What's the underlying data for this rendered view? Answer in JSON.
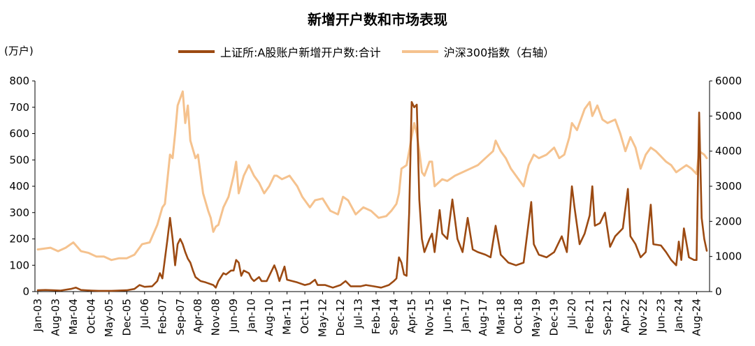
{
  "title": "新增开户数和市场表现",
  "left_unit": "(万户)",
  "colors": {
    "accounts": "#9c4a12",
    "index": "#f5c28e"
  },
  "chart_data": {
    "type": "line",
    "title": "新增开户数和市场表现",
    "ylabel_left": "(万户)",
    "ylim_left": [
      0,
      800
    ],
    "ylim_right": [
      0,
      6000
    ],
    "y_ticks_left": [
      "0",
      "100",
      "200",
      "300",
      "400",
      "500",
      "600",
      "700",
      "800"
    ],
    "y_ticks_right": [
      "0",
      "1000",
      "2000",
      "3000",
      "4000",
      "5000",
      "6000"
    ],
    "x_ticks": [
      "Jan-03",
      "Aug-03",
      "Mar-04",
      "Oct-04",
      "May-05",
      "Dec-05",
      "Jul-06",
      "Feb-07",
      "Sep-07",
      "Apr-08",
      "Nov-08",
      "Jun-09",
      "Jan-10",
      "Aug-10",
      "Mar-11",
      "Oct-11",
      "May-12",
      "Dec-12",
      "Jul-13",
      "Feb-14",
      "Sep-14",
      "Apr-15",
      "Nov-15",
      "Jun-16",
      "Jan-17",
      "Aug-17",
      "Mar-18",
      "Oct-18",
      "May-19",
      "Dec-19",
      "Jul-20",
      "Feb-21",
      "Sep-21",
      "Apr-22",
      "Nov-22",
      "Jun-23",
      "Jan-24",
      "Aug-24"
    ],
    "legend_position": "top",
    "grid": false,
    "series": [
      {
        "name": "上证所:A股账户新增开户数:合计",
        "axis": "left",
        "points": [
          [
            "2003-01",
            5
          ],
          [
            "2003-04",
            6
          ],
          [
            "2003-07",
            5
          ],
          [
            "2003-10",
            4
          ],
          [
            "2004-02",
            10
          ],
          [
            "2004-04",
            15
          ],
          [
            "2004-06",
            6
          ],
          [
            "2004-10",
            4
          ],
          [
            "2005-01",
            3
          ],
          [
            "2005-06",
            3
          ],
          [
            "2005-12",
            5
          ],
          [
            "2006-03",
            10
          ],
          [
            "2006-05",
            25
          ],
          [
            "2006-07",
            18
          ],
          [
            "2006-10",
            20
          ],
          [
            "2006-12",
            40
          ],
          [
            "2007-01",
            70
          ],
          [
            "2007-02",
            50
          ],
          [
            "2007-04",
            200
          ],
          [
            "2007-05",
            280
          ],
          [
            "2007-06",
            200
          ],
          [
            "2007-07",
            100
          ],
          [
            "2007-08",
            180
          ],
          [
            "2007-09",
            200
          ],
          [
            "2007-10",
            180
          ],
          [
            "2007-11",
            150
          ],
          [
            "2007-12",
            125
          ],
          [
            "2008-01",
            110
          ],
          [
            "2008-02",
            80
          ],
          [
            "2008-03",
            55
          ],
          [
            "2008-05",
            40
          ],
          [
            "2008-07",
            35
          ],
          [
            "2008-10",
            25
          ],
          [
            "2008-11",
            15
          ],
          [
            "2008-12",
            40
          ],
          [
            "2009-02",
            70
          ],
          [
            "2009-03",
            65
          ],
          [
            "2009-05",
            80
          ],
          [
            "2009-06",
            80
          ],
          [
            "2009-07",
            120
          ],
          [
            "2009-08",
            110
          ],
          [
            "2009-09",
            60
          ],
          [
            "2009-10",
            80
          ],
          [
            "2009-12",
            70
          ],
          [
            "2010-01",
            50
          ],
          [
            "2010-02",
            40
          ],
          [
            "2010-04",
            55
          ],
          [
            "2010-05",
            40
          ],
          [
            "2010-07",
            40
          ],
          [
            "2010-10",
            100
          ],
          [
            "2010-11",
            75
          ],
          [
            "2010-12",
            40
          ],
          [
            "2011-02",
            95
          ],
          [
            "2011-03",
            45
          ],
          [
            "2011-05",
            40
          ],
          [
            "2011-07",
            35
          ],
          [
            "2011-10",
            25
          ],
          [
            "2011-12",
            30
          ],
          [
            "2012-02",
            45
          ],
          [
            "2012-03",
            25
          ],
          [
            "2012-06",
            25
          ],
          [
            "2012-09",
            15
          ],
          [
            "2012-12",
            25
          ],
          [
            "2013-02",
            40
          ],
          [
            "2013-04",
            20
          ],
          [
            "2013-08",
            20
          ],
          [
            "2013-10",
            25
          ],
          [
            "2014-01",
            20
          ],
          [
            "2014-04",
            15
          ],
          [
            "2014-07",
            25
          ],
          [
            "2014-09",
            40
          ],
          [
            "2014-10",
            50
          ],
          [
            "2014-11",
            130
          ],
          [
            "2014-12",
            110
          ],
          [
            "2015-01",
            65
          ],
          [
            "2015-02",
            60
          ],
          [
            "2015-03",
            300
          ],
          [
            "2015-04",
            720
          ],
          [
            "2015-05",
            700
          ],
          [
            "2015-06",
            710
          ],
          [
            "2015-07",
            350
          ],
          [
            "2015-08",
            200
          ],
          [
            "2015-09",
            150
          ],
          [
            "2015-11",
            200
          ],
          [
            "2015-12",
            220
          ],
          [
            "2016-01",
            150
          ],
          [
            "2016-03",
            310
          ],
          [
            "2016-04",
            220
          ],
          [
            "2016-06",
            200
          ],
          [
            "2016-08",
            350
          ],
          [
            "2016-10",
            200
          ],
          [
            "2016-12",
            150
          ],
          [
            "2017-02",
            280
          ],
          [
            "2017-04",
            160
          ],
          [
            "2017-06",
            150
          ],
          [
            "2017-09",
            140
          ],
          [
            "2017-11",
            130
          ],
          [
            "2018-01",
            250
          ],
          [
            "2018-03",
            140
          ],
          [
            "2018-06",
            110
          ],
          [
            "2018-09",
            100
          ],
          [
            "2018-12",
            110
          ],
          [
            "2019-03",
            340
          ],
          [
            "2019-04",
            180
          ],
          [
            "2019-06",
            140
          ],
          [
            "2019-09",
            130
          ],
          [
            "2019-12",
            150
          ],
          [
            "2020-03",
            210
          ],
          [
            "2020-05",
            150
          ],
          [
            "2020-07",
            400
          ],
          [
            "2020-08",
            320
          ],
          [
            "2020-10",
            180
          ],
          [
            "2020-12",
            220
          ],
          [
            "2021-02",
            290
          ],
          [
            "2021-03",
            400
          ],
          [
            "2021-04",
            250
          ],
          [
            "2021-06",
            260
          ],
          [
            "2021-08",
            300
          ],
          [
            "2021-10",
            170
          ],
          [
            "2021-12",
            210
          ],
          [
            "2022-03",
            240
          ],
          [
            "2022-05",
            390
          ],
          [
            "2022-06",
            210
          ],
          [
            "2022-08",
            180
          ],
          [
            "2022-10",
            130
          ],
          [
            "2022-12",
            150
          ],
          [
            "2023-02",
            330
          ],
          [
            "2023-03",
            180
          ],
          [
            "2023-06",
            175
          ],
          [
            "2023-08",
            150
          ],
          [
            "2023-10",
            120
          ],
          [
            "2023-12",
            100
          ],
          [
            "2024-01",
            190
          ],
          [
            "2024-02",
            120
          ],
          [
            "2024-03",
            240
          ],
          [
            "2024-05",
            130
          ],
          [
            "2024-07",
            120
          ],
          [
            "2024-08",
            120
          ],
          [
            "2024-09",
            680
          ],
          [
            "2024-10",
            280
          ],
          [
            "2024-11",
            200
          ],
          [
            "2024-12",
            155
          ]
        ]
      },
      {
        "name": "沪深300指数（右轴）",
        "axis": "right",
        "points": [
          [
            "2003-01",
            1200
          ],
          [
            "2003-06",
            1250
          ],
          [
            "2003-09",
            1150
          ],
          [
            "2003-12",
            1250
          ],
          [
            "2004-03",
            1400
          ],
          [
            "2004-06",
            1150
          ],
          [
            "2004-09",
            1100
          ],
          [
            "2004-12",
            1000
          ],
          [
            "2005-03",
            1000
          ],
          [
            "2005-06",
            900
          ],
          [
            "2005-09",
            950
          ],
          [
            "2005-12",
            950
          ],
          [
            "2006-03",
            1050
          ],
          [
            "2006-06",
            1350
          ],
          [
            "2006-09",
            1400
          ],
          [
            "2006-12",
            1900
          ],
          [
            "2007-02",
            2400
          ],
          [
            "2007-03",
            2500
          ],
          [
            "2007-05",
            3900
          ],
          [
            "2007-06",
            3800
          ],
          [
            "2007-07",
            4500
          ],
          [
            "2007-08",
            5300
          ],
          [
            "2007-10",
            5700
          ],
          [
            "2007-11",
            4800
          ],
          [
            "2007-12",
            5300
          ],
          [
            "2008-01",
            4300
          ],
          [
            "2008-03",
            3800
          ],
          [
            "2008-04",
            3900
          ],
          [
            "2008-06",
            2800
          ],
          [
            "2008-08",
            2300
          ],
          [
            "2008-09",
            2100
          ],
          [
            "2008-10",
            1700
          ],
          [
            "2008-11",
            1850
          ],
          [
            "2008-12",
            1900
          ],
          [
            "2009-02",
            2400
          ],
          [
            "2009-04",
            2700
          ],
          [
            "2009-06",
            3300
          ],
          [
            "2009-07",
            3700
          ],
          [
            "2009-08",
            2800
          ],
          [
            "2009-10",
            3300
          ],
          [
            "2009-12",
            3600
          ],
          [
            "2010-02",
            3300
          ],
          [
            "2010-04",
            3100
          ],
          [
            "2010-06",
            2800
          ],
          [
            "2010-08",
            3000
          ],
          [
            "2010-10",
            3300
          ],
          [
            "2010-11",
            3300
          ],
          [
            "2011-01",
            3200
          ],
          [
            "2011-04",
            3300
          ],
          [
            "2011-07",
            3000
          ],
          [
            "2011-09",
            2700
          ],
          [
            "2011-12",
            2400
          ],
          [
            "2012-02",
            2600
          ],
          [
            "2012-05",
            2650
          ],
          [
            "2012-08",
            2300
          ],
          [
            "2012-11",
            2200
          ],
          [
            "2013-01",
            2700
          ],
          [
            "2013-03",
            2600
          ],
          [
            "2013-06",
            2200
          ],
          [
            "2013-09",
            2400
          ],
          [
            "2013-12",
            2300
          ],
          [
            "2014-03",
            2100
          ],
          [
            "2014-06",
            2150
          ],
          [
            "2014-08",
            2300
          ],
          [
            "2014-10",
            2500
          ],
          [
            "2014-11",
            2800
          ],
          [
            "2014-12",
            3500
          ],
          [
            "2015-02",
            3600
          ],
          [
            "2015-03",
            4000
          ],
          [
            "2015-05",
            4800
          ],
          [
            "2015-06",
            4500
          ],
          [
            "2015-07",
            4000
          ],
          [
            "2015-08",
            3400
          ],
          [
            "2015-09",
            3300
          ],
          [
            "2015-11",
            3700
          ],
          [
            "2015-12",
            3700
          ],
          [
            "2016-01",
            3000
          ],
          [
            "2016-04",
            3200
          ],
          [
            "2016-06",
            3150
          ],
          [
            "2016-09",
            3300
          ],
          [
            "2016-12",
            3400
          ],
          [
            "2017-03",
            3500
          ],
          [
            "2017-06",
            3600
          ],
          [
            "2017-09",
            3800
          ],
          [
            "2017-12",
            4000
          ],
          [
            "2018-01",
            4300
          ],
          [
            "2018-03",
            4000
          ],
          [
            "2018-05",
            3800
          ],
          [
            "2018-07",
            3500
          ],
          [
            "2018-10",
            3200
          ],
          [
            "2018-12",
            3000
          ],
          [
            "2019-02",
            3600
          ],
          [
            "2019-04",
            3900
          ],
          [
            "2019-06",
            3800
          ],
          [
            "2019-09",
            3900
          ],
          [
            "2019-12",
            4100
          ],
          [
            "2020-02",
            3800
          ],
          [
            "2020-04",
            3900
          ],
          [
            "2020-06",
            4400
          ],
          [
            "2020-07",
            4800
          ],
          [
            "2020-09",
            4600
          ],
          [
            "2020-12",
            5200
          ],
          [
            "2021-02",
            5400
          ],
          [
            "2021-03",
            5000
          ],
          [
            "2021-05",
            5300
          ],
          [
            "2021-07",
            4900
          ],
          [
            "2021-09",
            4800
          ],
          [
            "2021-12",
            4900
          ],
          [
            "2022-02",
            4500
          ],
          [
            "2022-04",
            4000
          ],
          [
            "2022-06",
            4400
          ],
          [
            "2022-08",
            4100
          ],
          [
            "2022-10",
            3500
          ],
          [
            "2022-12",
            3900
          ],
          [
            "2023-02",
            4100
          ],
          [
            "2023-04",
            4000
          ],
          [
            "2023-06",
            3850
          ],
          [
            "2023-08",
            3700
          ],
          [
            "2023-10",
            3600
          ],
          [
            "2023-12",
            3400
          ],
          [
            "2024-02",
            3500
          ],
          [
            "2024-04",
            3600
          ],
          [
            "2024-06",
            3500
          ],
          [
            "2024-08",
            3350
          ],
          [
            "2024-09",
            4000
          ],
          [
            "2024-11",
            3900
          ],
          [
            "2024-12",
            3800
          ]
        ]
      }
    ]
  }
}
